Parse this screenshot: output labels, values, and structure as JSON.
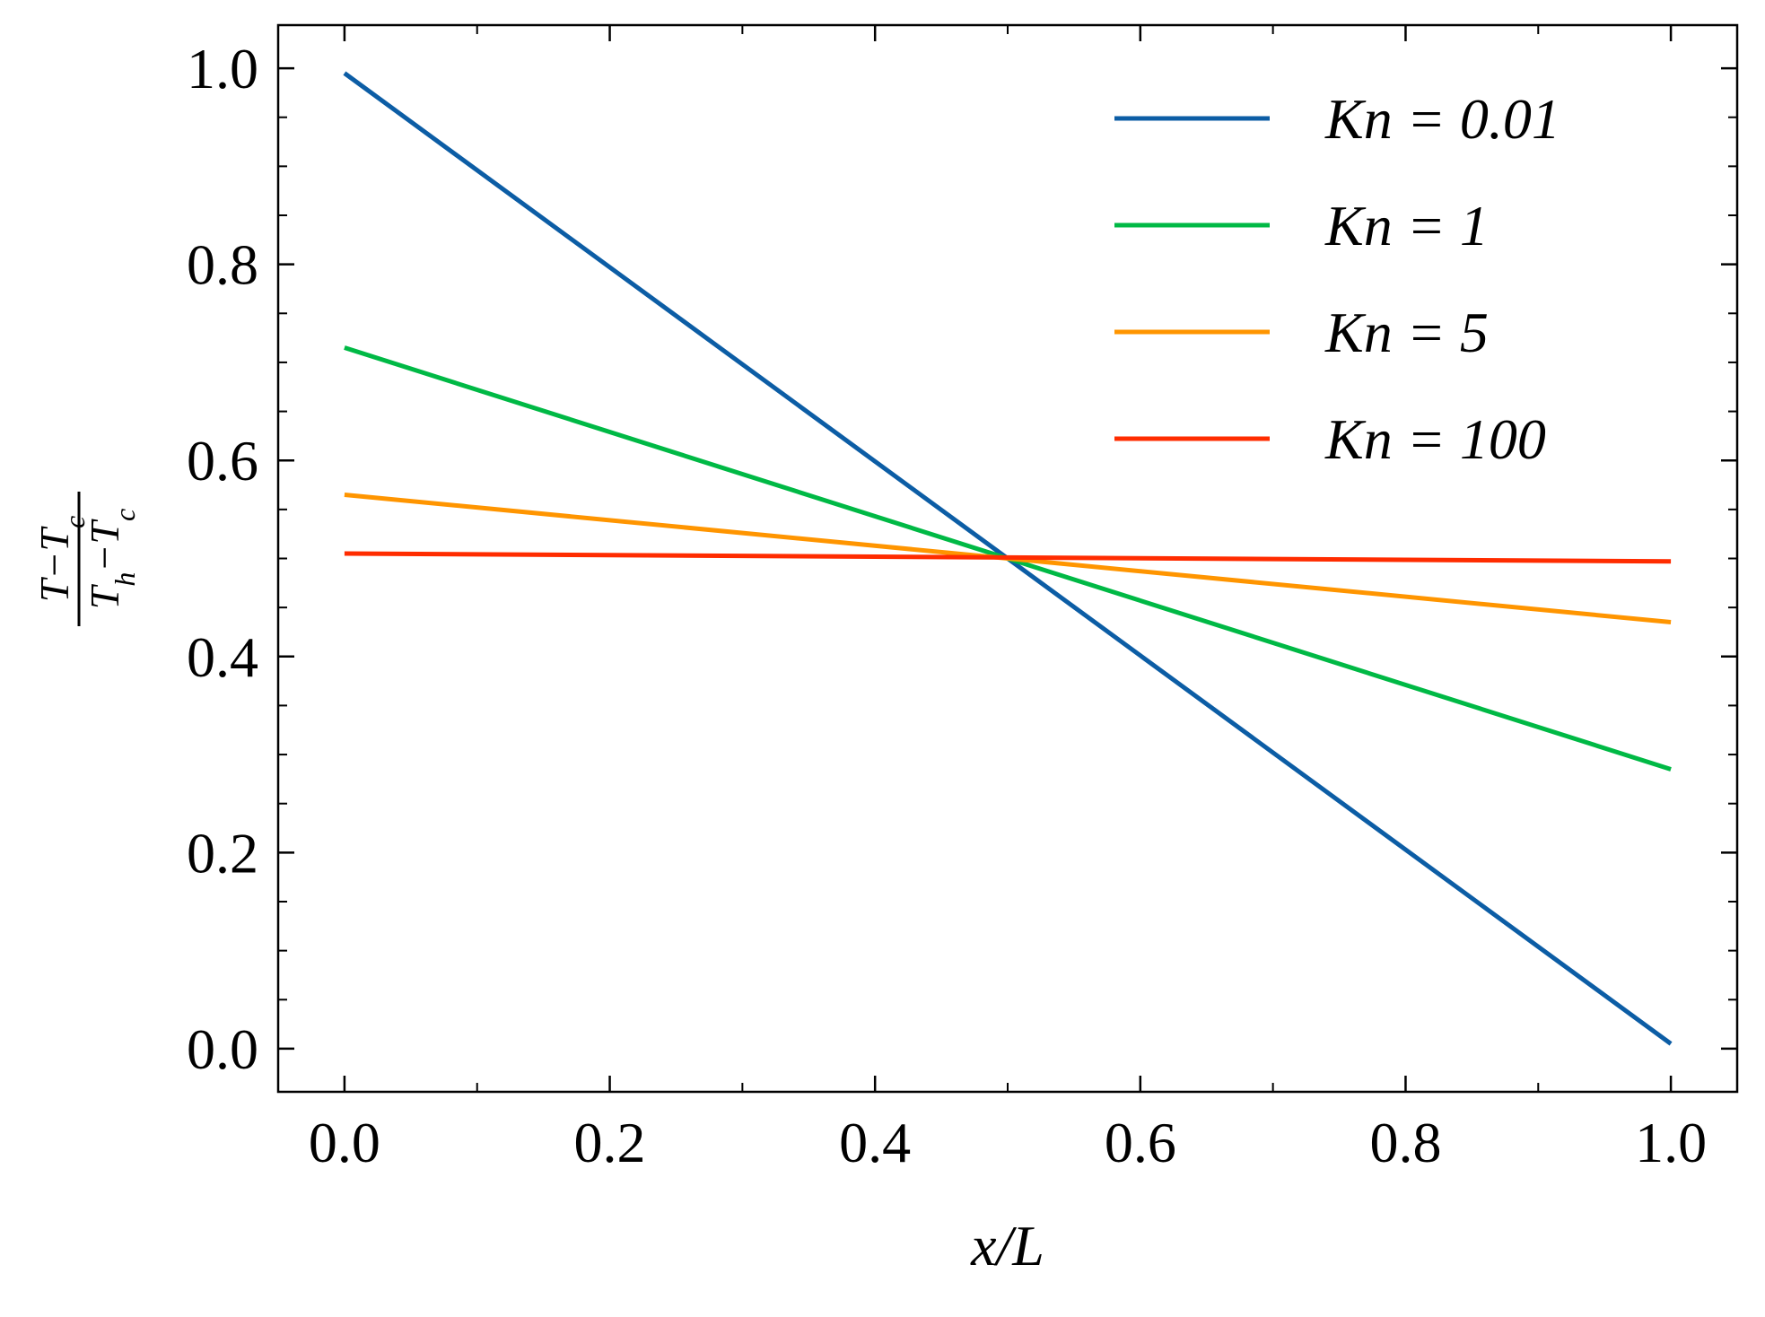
{
  "chart_data": {
    "type": "line",
    "xlabel": "x/L",
    "ylabel": {
      "numerator": "T−T_c",
      "denominator": "T_h−T_c"
    },
    "x": [
      0,
      1
    ],
    "series": [
      {
        "name": "Kn = 0.01",
        "color": "#0C5DA5",
        "values": [
          0.995,
          0.005
        ]
      },
      {
        "name": "Kn = 1",
        "color": "#00B945",
        "values": [
          0.715,
          0.285
        ]
      },
      {
        "name": "Kn = 5",
        "color": "#FF9500",
        "values": [
          0.565,
          0.435
        ]
      },
      {
        "name": "Kn = 100",
        "color": "#FF2C00",
        "values": [
          0.505,
          0.497
        ]
      }
    ],
    "xlim": [
      -0.05,
      1.05
    ],
    "ylim": [
      -0.044,
      1.044
    ],
    "xticks": [
      {
        "value": 0,
        "label": "0.0"
      },
      0.2,
      0.4,
      0.6,
      0.8,
      {
        "value": 1,
        "label": "1.0"
      }
    ],
    "yticks": [
      {
        "value": 0,
        "label": "0.0"
      },
      0.2,
      0.4,
      0.6,
      0.8,
      {
        "value": 1,
        "label": "1.0"
      }
    ],
    "legend": "upper right",
    "grid": false
  }
}
